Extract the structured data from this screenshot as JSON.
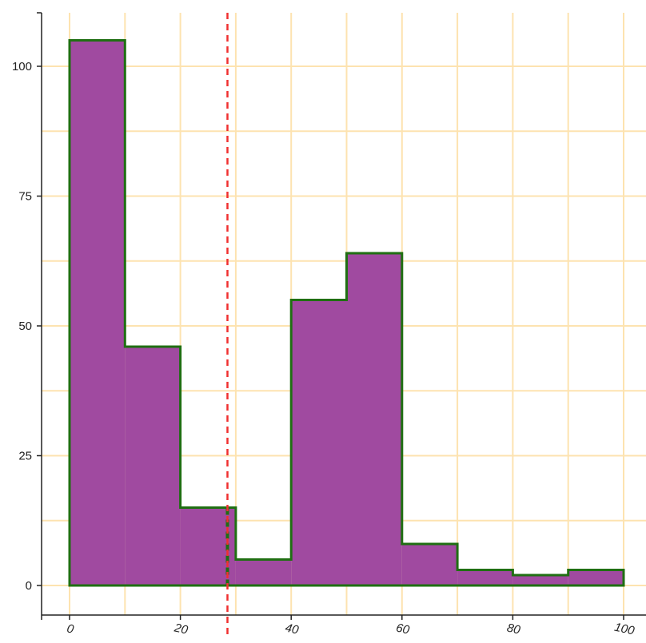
{
  "chart_data": {
    "type": "histogram",
    "title": "",
    "xlabel": "",
    "ylabel": "",
    "xlim": [
      0,
      100
    ],
    "ylim": [
      0,
      110
    ],
    "bins": [
      {
        "x0": 0,
        "x1": 10,
        "value": 105
      },
      {
        "x0": 10,
        "x1": 20,
        "value": 46
      },
      {
        "x0": 20,
        "x1": 30,
        "value": 15
      },
      {
        "x0": 30,
        "x1": 40,
        "value": 5
      },
      {
        "x0": 40,
        "x1": 50,
        "value": 55
      },
      {
        "x0": 50,
        "x1": 60,
        "value": 64
      },
      {
        "x0": 60,
        "x1": 70,
        "value": 8
      },
      {
        "x0": 70,
        "x1": 80,
        "value": 3
      },
      {
        "x0": 80,
        "x1": 90,
        "value": 2
      },
      {
        "x0": 90,
        "x1": 100,
        "value": 3
      }
    ],
    "x_ticks": [
      0,
      20,
      40,
      60,
      80,
      100
    ],
    "x_tick_labels": [
      "0",
      "20",
      "40",
      "60",
      "80",
      "100"
    ],
    "y_ticks": [
      0,
      25,
      50,
      75,
      100
    ],
    "y_tick_labels": [
      "0",
      "25",
      "50",
      "75",
      "100"
    ],
    "x_grid": [
      0,
      10,
      20,
      30,
      40,
      50,
      60,
      70,
      80,
      90,
      100
    ],
    "y_grid": [
      0,
      12.5,
      25,
      37.5,
      50,
      62.5,
      75,
      87.5,
      100
    ],
    "threshold_x": 28.5,
    "grid": true,
    "legend": "none",
    "colors": {
      "fill": "#a04aa0",
      "outline": "#1f6f12",
      "grid": "#fde3b0",
      "threshold": "#f03030",
      "axis": "#222222"
    }
  }
}
